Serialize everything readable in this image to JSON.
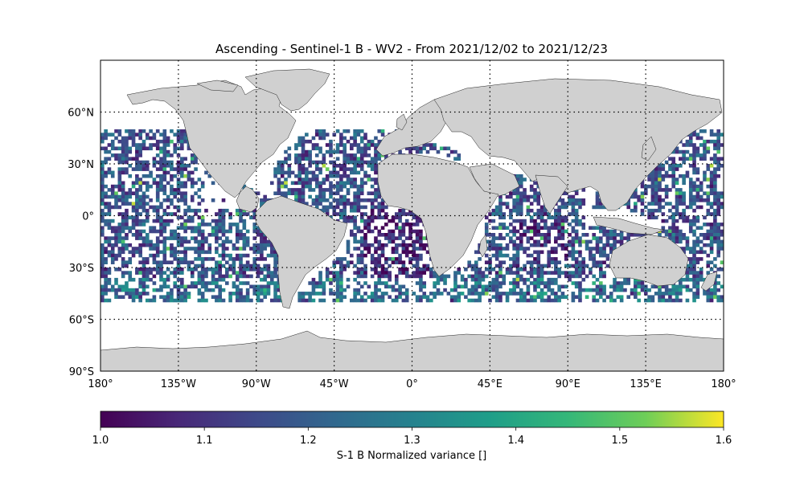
{
  "title": "Ascending - Sentinel-1 B - WV2 - From 2021/12/02 to 2021/12/23",
  "map": {
    "projection": "plate-carree",
    "lon_range": [
      -180,
      180
    ],
    "lat_range": [
      -90,
      90
    ],
    "land_color": "#d0d0d0",
    "coastline_color": "#000000",
    "gridlines": "dotted",
    "lon_ticks": [
      {
        "value": -180,
        "label": "180°"
      },
      {
        "value": -135,
        "label": "135°W"
      },
      {
        "value": -90,
        "label": "90°W"
      },
      {
        "value": -45,
        "label": "45°W"
      },
      {
        "value": 0,
        "label": "0°"
      },
      {
        "value": 45,
        "label": "45°E"
      },
      {
        "value": 90,
        "label": "90°E"
      },
      {
        "value": 135,
        "label": "135°E"
      },
      {
        "value": 180,
        "label": "180°"
      }
    ],
    "lat_ticks": [
      {
        "value": 60,
        "label": "60°N"
      },
      {
        "value": 30,
        "label": "30°N"
      },
      {
        "value": 0,
        "label": "0°"
      },
      {
        "value": -30,
        "label": "30°S"
      },
      {
        "value": -60,
        "label": "60°S"
      },
      {
        "value": -90,
        "label": "90°S"
      }
    ]
  },
  "chart_data": {
    "type": "heatmap",
    "title": "Ascending - Sentinel-1 B - WV2 - From 2021/12/02 to 2021/12/23",
    "colormap": "viridis",
    "value_range": [
      1.0,
      1.6
    ],
    "data_lat_extent": [
      -50,
      50
    ],
    "colorbar": {
      "label": "S-1 B Normalized variance []",
      "ticks": [
        "1.0",
        "1.1",
        "1.2",
        "1.3",
        "1.4",
        "1.5",
        "1.6"
      ]
    }
  }
}
